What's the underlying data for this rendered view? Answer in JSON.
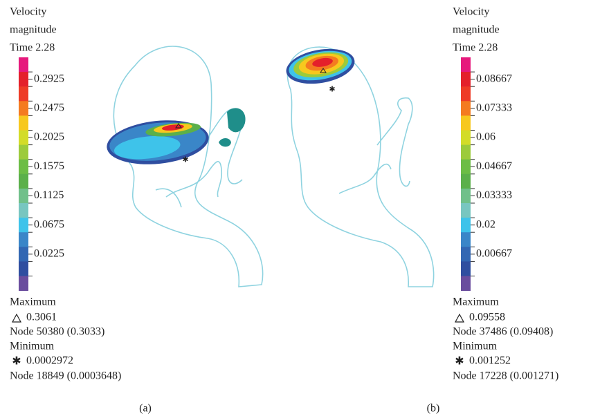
{
  "panels": [
    {
      "legend": {
        "title": [
          "Velocity",
          "magnitude",
          "Time 2.28"
        ],
        "ticks": [
          "0.2925",
          "0.2475",
          "0.2025",
          "0.1575",
          "0.1125",
          "0.0675",
          "0.0225"
        ]
      },
      "maximum": {
        "label": "Maximum",
        "value": "0.3061",
        "node": "Node 50380 (0.3033)"
      },
      "minimum": {
        "label": "Minimum",
        "value": "0.0002972",
        "node": "Node 18849 (0.0003648)"
      },
      "caption": "(a)"
    },
    {
      "legend": {
        "title": [
          "Velocity",
          "magnitude",
          "Time 2.28"
        ],
        "ticks": [
          "0.08667",
          "0.07333",
          "0.06",
          "0.04667",
          "0.03333",
          "0.02",
          "0.00667"
        ]
      },
      "maximum": {
        "label": "Maximum",
        "value": "0.09558",
        "node": "Node 37486 (0.09408)"
      },
      "minimum": {
        "label": "Minimum",
        "value": "0.001252",
        "node": "Node 17228 (0.001271)"
      },
      "caption": "(b)"
    }
  ]
}
